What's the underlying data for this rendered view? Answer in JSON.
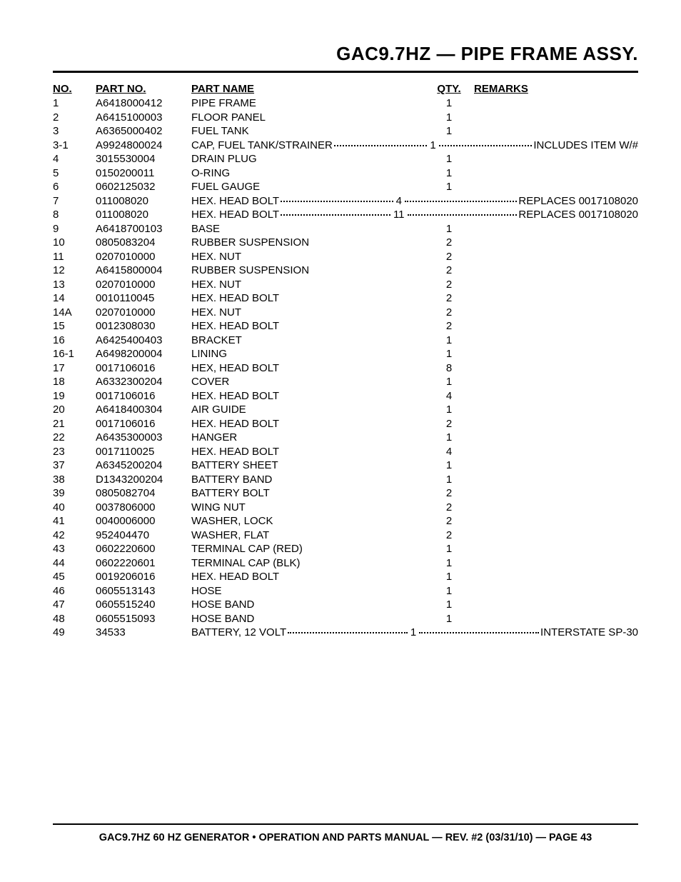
{
  "title": "GAC9.7HZ — PIPE FRAME ASSY.",
  "headers": {
    "no": "NO.",
    "part_no": "PART NO.",
    "part_name": "PART NAME",
    "qty": "QTY.",
    "remarks": "REMARKS"
  },
  "rows": [
    {
      "no": "1",
      "part": "A6418000412",
      "name": "PIPE FRAME",
      "qty": "1",
      "remarks": "",
      "leader": false
    },
    {
      "no": "2",
      "part": "A6415100003",
      "name": "FLOOR PANEL",
      "qty": "1",
      "remarks": "",
      "leader": false
    },
    {
      "no": "3",
      "part": "A6365000402",
      "name": "FUEL TANK",
      "qty": "1",
      "remarks": "",
      "leader": false
    },
    {
      "no": "3-1",
      "part": "A9924800024",
      "name": "CAP, FUEL TANK/STRAINER",
      "qty": "1",
      "remarks": "INCLUDES ITEM W/#",
      "leader": true
    },
    {
      "no": "4",
      "part": "3015530004",
      "name": "DRAIN PLUG",
      "qty": "1",
      "remarks": "",
      "leader": false
    },
    {
      "no": "5",
      "part": "0150200011",
      "name": "O-RING",
      "qty": "1",
      "remarks": "",
      "leader": false
    },
    {
      "no": "6",
      "part": "0602125032",
      "name": "FUEL GAUGE",
      "qty": "1",
      "remarks": "",
      "leader": false
    },
    {
      "no": "7",
      "part": "011008020",
      "name": "HEX. HEAD BOLT",
      "qty": "4",
      "remarks": "REPLACES 0017108020",
      "leader": true
    },
    {
      "no": "8",
      "part": "011008020",
      "name": "HEX. HEAD BOLT",
      "qty": "11",
      "remarks": "REPLACES 0017108020",
      "leader": true
    },
    {
      "no": "9",
      "part": "A6418700103",
      "name": "BASE",
      "qty": "1",
      "remarks": "",
      "leader": false
    },
    {
      "no": "10",
      "part": "0805083204",
      "name": "RUBBER SUSPENSION",
      "qty": "2",
      "remarks": "",
      "leader": false
    },
    {
      "no": "11",
      "part": "0207010000",
      "name": "HEX. NUT",
      "qty": "2",
      "remarks": "",
      "leader": false
    },
    {
      "no": "12",
      "part": "A6415800004",
      "name": "RUBBER SUSPENSION",
      "qty": "2",
      "remarks": "",
      "leader": false
    },
    {
      "no": "13",
      "part": "0207010000",
      "name": "HEX. NUT",
      "qty": "2",
      "remarks": "",
      "leader": false
    },
    {
      "no": "14",
      "part": "0010110045",
      "name": "HEX. HEAD BOLT",
      "qty": "2",
      "remarks": "",
      "leader": false
    },
    {
      "no": "14A",
      "part": "0207010000",
      "name": "HEX. NUT",
      "qty": "2",
      "remarks": "",
      "leader": false
    },
    {
      "no": "15",
      "part": "0012308030",
      "name": "HEX. HEAD BOLT",
      "qty": "2",
      "remarks": "",
      "leader": false
    },
    {
      "no": "16",
      "part": "A6425400403",
      "name": "BRACKET",
      "qty": "1",
      "remarks": "",
      "leader": false
    },
    {
      "no": "16-1",
      "part": "A6498200004",
      "name": "LINING",
      "qty": "1",
      "remarks": "",
      "leader": false
    },
    {
      "no": "17",
      "part": "0017106016",
      "name": "HEX, HEAD BOLT",
      "qty": "8",
      "remarks": "",
      "leader": false
    },
    {
      "no": "18",
      "part": "A6332300204",
      "name": "COVER",
      "qty": "1",
      "remarks": "",
      "leader": false
    },
    {
      "no": "19",
      "part": "0017106016",
      "name": "HEX. HEAD BOLT",
      "qty": "4",
      "remarks": "",
      "leader": false
    },
    {
      "no": "20",
      "part": "A6418400304",
      "name": "AIR GUIDE",
      "qty": "1",
      "remarks": "",
      "leader": false
    },
    {
      "no": "21",
      "part": "0017106016",
      "name": "HEX. HEAD BOLT",
      "qty": "2",
      "remarks": "",
      "leader": false
    },
    {
      "no": "22",
      "part": "A6435300003",
      "name": "HANGER",
      "qty": "1",
      "remarks": "",
      "leader": false
    },
    {
      "no": "23",
      "part": "0017110025",
      "name": "HEX. HEAD BOLT",
      "qty": "4",
      "remarks": "",
      "leader": false
    },
    {
      "no": "37",
      "part": "A6345200204",
      "name": "BATTERY SHEET",
      "qty": "1",
      "remarks": "",
      "leader": false
    },
    {
      "no": "38",
      "part": "D1343200204",
      "name": "BATTERY BAND",
      "qty": "1",
      "remarks": "",
      "leader": false
    },
    {
      "no": "39",
      "part": "0805082704",
      "name": "BATTERY BOLT",
      "qty": "2",
      "remarks": "",
      "leader": false
    },
    {
      "no": "40",
      "part": "0037806000",
      "name": "WING NUT",
      "qty": "2",
      "remarks": "",
      "leader": false
    },
    {
      "no": "41",
      "part": "0040006000",
      "name": "WASHER, LOCK",
      "qty": "2",
      "remarks": "",
      "leader": false
    },
    {
      "no": "42",
      "part": "952404470",
      "name": "WASHER, FLAT",
      "qty": "2",
      "remarks": "",
      "leader": false
    },
    {
      "no": "43",
      "part": "0602220600",
      "name": "TERMINAL CAP (RED)",
      "qty": "1",
      "remarks": "",
      "leader": false
    },
    {
      "no": "44",
      "part": "0602220601",
      "name": "TERMINAL CAP (BLK)",
      "qty": "1",
      "remarks": "",
      "leader": false
    },
    {
      "no": "45",
      "part": "0019206016",
      "name": "HEX. HEAD BOLT",
      "qty": "1",
      "remarks": "",
      "leader": false
    },
    {
      "no": "46",
      "part": "0605513143",
      "name": "HOSE",
      "qty": "1",
      "remarks": "",
      "leader": false
    },
    {
      "no": "47",
      "part": "0605515240",
      "name": "HOSE BAND",
      "qty": "1",
      "remarks": "",
      "leader": false
    },
    {
      "no": "48",
      "part": "0605515093",
      "name": "HOSE BAND",
      "qty": "1",
      "remarks": "",
      "leader": false
    },
    {
      "no": "49",
      "part": "34533",
      "name": "BATTERY, 12 VOLT",
      "qty": "1",
      "remarks": "INTERSTATE SP-30",
      "leader": true
    }
  ],
  "footer": "GAC9.7HZ 60 HZ GENERATOR • OPERATION AND PARTS MANUAL — REV. #2 (03/31/10) — PAGE 43"
}
